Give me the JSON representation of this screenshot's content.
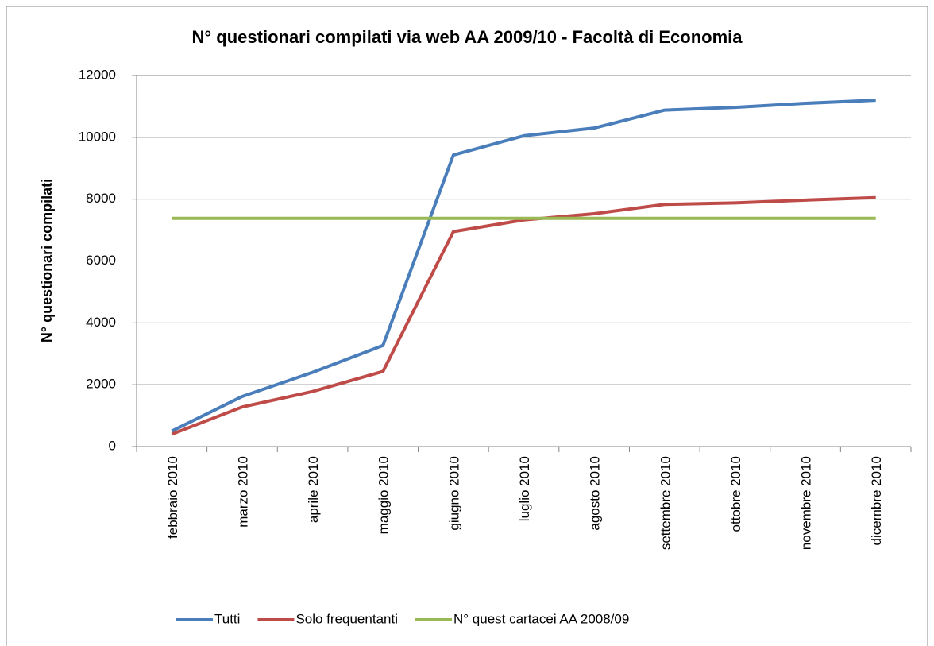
{
  "chart_data": {
    "type": "line",
    "title": "N° questionari compilati via web AA 2009/10 - Facoltà di Economia",
    "y_label": "N° questionari compilati",
    "categories": [
      "febbraio 2010",
      "marzo 2010",
      "aprile 2010",
      "maggio 2010",
      "giugno 2010",
      "luglio 2010",
      "agosto 2010",
      "settembre 2010",
      "ottobre 2010",
      "novembre 2010",
      "dicembre 2010"
    ],
    "series": [
      {
        "name": "Tutti",
        "color": "#4a7ebb",
        "values": [
          500,
          1620,
          2400,
          3270,
          9430,
          10050,
          10300,
          10880,
          10970,
          11100,
          11200
        ]
      },
      {
        "name": "Solo frequentanti",
        "color": "#be4b48",
        "values": [
          400,
          1280,
          1780,
          2430,
          6950,
          7330,
          7530,
          7830,
          7880,
          7970,
          8050
        ]
      },
      {
        "name": "N° quest cartacei AA 2008/09",
        "color": "#98b954",
        "values": [
          7380,
          7380,
          7380,
          7380,
          7380,
          7380,
          7380,
          7380,
          7380,
          7380,
          7380
        ]
      }
    ],
    "ylim": [
      0,
      12000
    ],
    "yticks": [
      0,
      2000,
      4000,
      6000,
      8000,
      10000,
      12000
    ],
    "grid": true,
    "legend": "bottom"
  }
}
